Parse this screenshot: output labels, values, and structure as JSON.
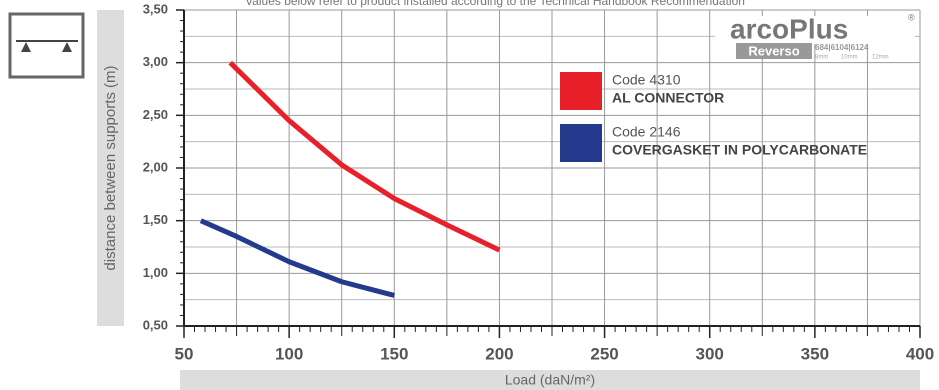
{
  "chart_data": {
    "type": "line",
    "title": "Values below refer to product installed according to the Technical Handbook Recommendation",
    "xlabel": "Load (daN/m²)",
    "ylabel": "distance between supports (m)",
    "xlim": [
      50,
      400
    ],
    "xticks": [
      50,
      100,
      150,
      200,
      250,
      300,
      350,
      400
    ],
    "ylim": [
      0.5,
      3.5
    ],
    "yticks": [
      {
        "value": 0.5,
        "label": "0,50"
      },
      {
        "value": 1.0,
        "label": "1,00"
      },
      {
        "value": 1.5,
        "label": "1,50"
      },
      {
        "value": 2.0,
        "label": "2,00"
      },
      {
        "value": 2.5,
        "label": "2,50"
      },
      {
        "value": 3.0,
        "label": "3,00"
      },
      {
        "value": 3.5,
        "label": "3,50"
      }
    ],
    "grid": true,
    "series": [
      {
        "code": "Code 4310",
        "name": "AL CONNECTOR",
        "color": "#e8202a",
        "x": [
          72,
          100,
          125,
          150,
          175,
          200
        ],
        "values": [
          3.0,
          2.45,
          2.03,
          1.71,
          1.46,
          1.22
        ]
      },
      {
        "code": "Code 2146",
        "name": "COVERGASKET IN POLYCARBONATE",
        "color": "#243a8c",
        "x": [
          58,
          75,
          100,
          125,
          150
        ],
        "values": [
          1.5,
          1.35,
          1.11,
          0.92,
          0.79
        ]
      }
    ],
    "logo": {
      "brand": "arcoPlus",
      "sub": "Reverso",
      "sizes": "684|6104|6124",
      "thickness": [
        "8mm",
        "10mm",
        "12mm"
      ]
    }
  }
}
